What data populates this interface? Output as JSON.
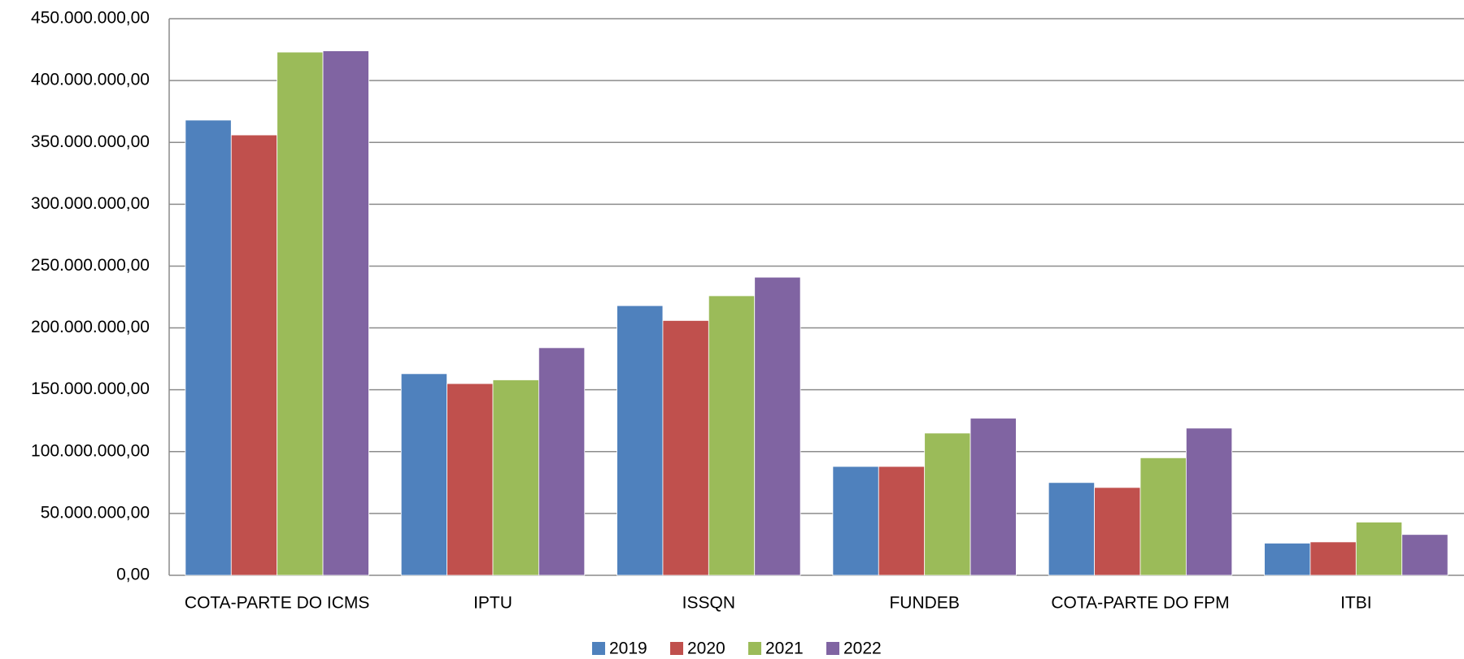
{
  "chart_data": {
    "type": "bar",
    "categories": [
      "COTA-PARTE DO ICMS",
      "IPTU",
      "ISSQN",
      "FUNDEB",
      "COTA-PARTE DO FPM",
      "ITBI"
    ],
    "series": [
      {
        "name": "2019",
        "color": "#4f81bd",
        "values": [
          368000000,
          163000000,
          218000000,
          88000000,
          75000000,
          26000000
        ]
      },
      {
        "name": "2020",
        "color": "#c0504d",
        "values": [
          356000000,
          155000000,
          206000000,
          88000000,
          71000000,
          27000000
        ]
      },
      {
        "name": "2021",
        "color": "#9bbb59",
        "values": [
          423000000,
          158000000,
          226000000,
          115000000,
          95000000,
          43000000
        ]
      },
      {
        "name": "2022",
        "color": "#8064a2",
        "values": [
          424000000,
          184000000,
          241000000,
          127000000,
          119000000,
          33000000
        ]
      }
    ],
    "ylim": [
      0,
      450000000
    ],
    "yticks": [
      {
        "value": 0,
        "label": "0,00"
      },
      {
        "value": 50000000,
        "label": "50.000.000,00"
      },
      {
        "value": 100000000,
        "label": "100.000.000,00"
      },
      {
        "value": 150000000,
        "label": "150.000.000,00"
      },
      {
        "value": 200000000,
        "label": "200.000.000,00"
      },
      {
        "value": 250000000,
        "label": "250.000.000,00"
      },
      {
        "value": 300000000,
        "label": "300.000.000,00"
      },
      {
        "value": 350000000,
        "label": "350.000.000,00"
      },
      {
        "value": 400000000,
        "label": "400.000.000,00"
      },
      {
        "value": 450000000,
        "label": "450.000.000,00"
      }
    ],
    "grid": true,
    "legend": "bottom"
  }
}
